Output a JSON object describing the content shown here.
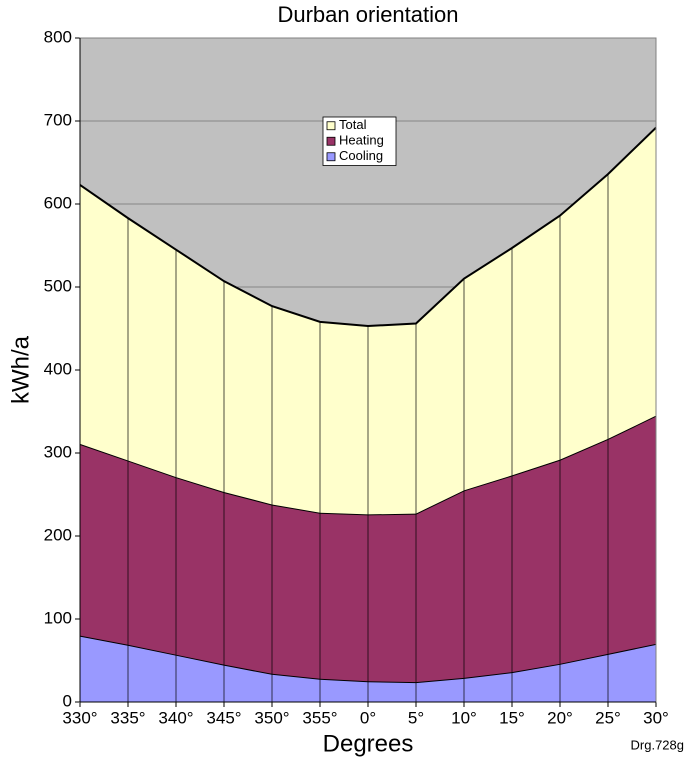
{
  "chart_data": {
    "type": "stacked_area",
    "title": "Durban orientation",
    "xlabel": "Degrees",
    "ylabel": "kWh/a",
    "annotation": "Drg.728g",
    "categories": [
      "330°",
      "335°",
      "340°",
      "345°",
      "350°",
      "355°",
      "0°",
      "5°",
      "10°",
      "15°",
      "20°",
      "25°",
      "30°"
    ],
    "series": [
      {
        "name": "Cooling",
        "color": "#9999ff",
        "values": [
          80,
          69,
          57,
          45,
          34,
          28,
          25,
          24,
          29,
          36,
          46,
          58,
          70
        ]
      },
      {
        "name": "Heating",
        "color": "#993366",
        "values": [
          231,
          222,
          214,
          208,
          204,
          200,
          201,
          203,
          226,
          237,
          246,
          259,
          275
        ]
      },
      {
        "name": "Total",
        "color": "#ffffcc",
        "values": [
          312,
          292,
          274,
          254,
          239,
          230,
          227,
          229,
          255,
          274,
          294,
          319,
          347
        ]
      }
    ],
    "ylim": [
      0,
      800
    ],
    "yticks": [
      0,
      100,
      200,
      300,
      400,
      500,
      600,
      700,
      800
    ],
    "grid": true,
    "background": "#c0c0c0"
  }
}
